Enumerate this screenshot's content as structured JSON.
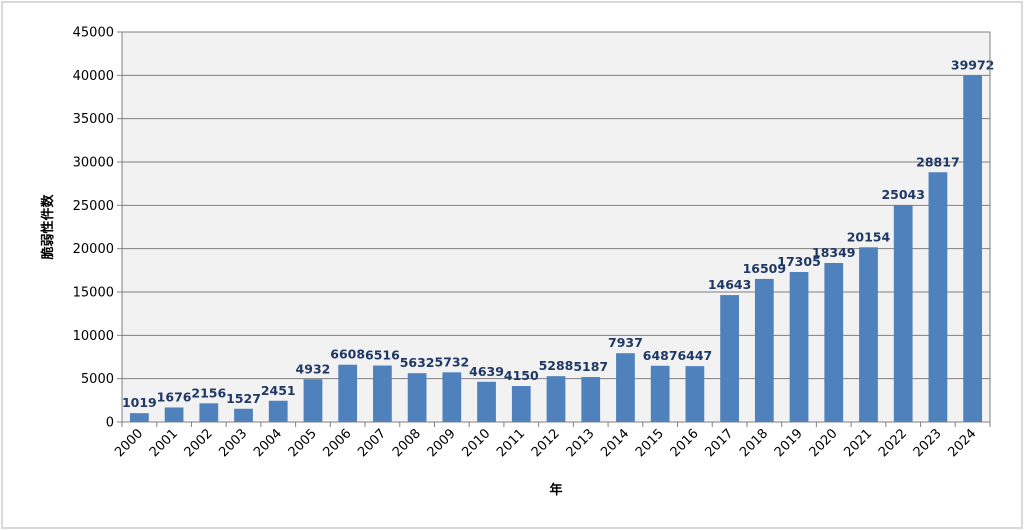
{
  "chart_data": {
    "type": "bar",
    "categories": [
      "2000",
      "2001",
      "2002",
      "2003",
      "2004",
      "2005",
      "2006",
      "2007",
      "2008",
      "2009",
      "2010",
      "2011",
      "2012",
      "2013",
      "2014",
      "2015",
      "2016",
      "2017",
      "2018",
      "2019",
      "2020",
      "2021",
      "2022",
      "2023",
      "2024"
    ],
    "values": [
      1019,
      1676,
      2156,
      1527,
      2451,
      4932,
      6608,
      6516,
      5632,
      5732,
      4639,
      4150,
      5288,
      5187,
      7937,
      6487,
      6447,
      14643,
      16509,
      17305,
      18349,
      20154,
      25043,
      28817,
      39972
    ],
    "data_labels": [
      "1019",
      "1676",
      "2156",
      "1527",
      "2451",
      "4932",
      "6608",
      "6516",
      "5632",
      "5732",
      "4639",
      "4150",
      "5288",
      "5187",
      "7937",
      "6487",
      "6447",
      "14643",
      "16509",
      "17305",
      "18349",
      "20154",
      "25043",
      "28817",
      "39972"
    ],
    "y_ticks": [
      "0",
      "5000",
      "10000",
      "15000",
      "20000",
      "25000",
      "30000",
      "35000",
      "40000",
      "45000"
    ],
    "title": "",
    "xlabel": "年",
    "ylabel": "脆弱性件数",
    "ylim": [
      0,
      45000
    ],
    "grid": true,
    "legend": "none",
    "colors": {
      "bar": "#4f81bd",
      "plot_bg": "#f2f2f2",
      "grid": "#808080",
      "label": "#1f3864",
      "frame": "#d9d9d9"
    }
  }
}
